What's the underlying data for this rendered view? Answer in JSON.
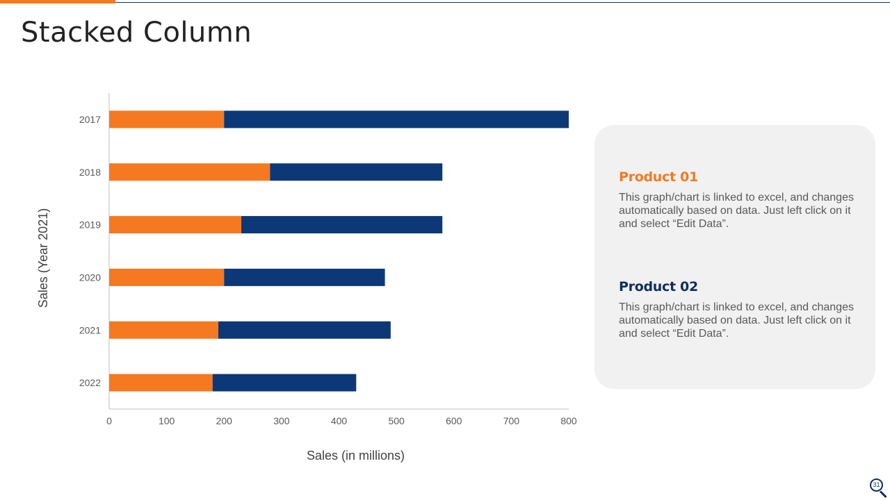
{
  "slide": {
    "title": "Stacked Column",
    "page_number": "31"
  },
  "colors": {
    "product_01": "#f47920",
    "product_02": "#0d3878",
    "axis": "#bfbfbf"
  },
  "products": [
    {
      "title": "Product 01",
      "description": "This graph/chart is linked to excel, and changes automatically based on data. Just left click on it and select “Edit Data”."
    },
    {
      "title": "Product 02",
      "description": "This graph/chart is linked to excel, and changes automatically based on data. Just left click on it and select “Edit Data”."
    }
  ],
  "chart_data": {
    "type": "bar",
    "orientation": "horizontal",
    "stacked": true,
    "title": "",
    "categories": [
      "2017",
      "2018",
      "2019",
      "2020",
      "2021",
      "2022"
    ],
    "series": [
      {
        "name": "Product 01",
        "values": [
          200,
          280,
          230,
          200,
          190,
          180
        ]
      },
      {
        "name": "Product 02",
        "values": [
          600,
          300,
          350,
          280,
          300,
          250
        ]
      }
    ],
    "xlabel": "Sales (in millions)",
    "ylabel": "Sales (Year 2021)",
    "xlim": [
      0,
      800
    ],
    "xticks": [
      0,
      100,
      200,
      300,
      400,
      500,
      600,
      700,
      800
    ],
    "grid": false,
    "legend": "none"
  }
}
